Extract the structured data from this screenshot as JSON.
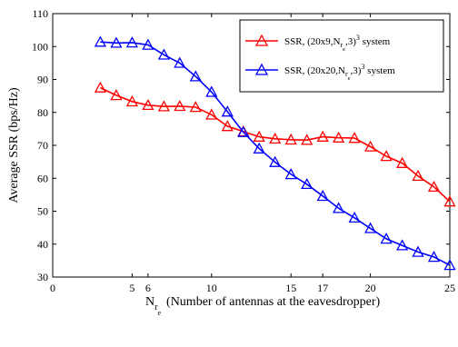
{
  "chart_data": {
    "type": "line",
    "xlim": [
      0,
      25
    ],
    "ylim": [
      30,
      110
    ],
    "xticks": [
      0,
      5,
      6,
      10,
      15,
      17,
      20,
      25
    ],
    "yticks": [
      30,
      40,
      50,
      60,
      70,
      80,
      90,
      100,
      110
    ],
    "xtick_labels": [
      "0",
      "5",
      "6",
      "10",
      "15",
      "17",
      "20",
      "25"
    ],
    "ytick_labels": [
      "30",
      "40",
      "50",
      "60",
      "70",
      "80",
      "90",
      "100",
      "110"
    ],
    "ylabel": "Average SSR (bps/Hz)",
    "xlabel": {
      "main": "N",
      "sub": "r",
      "subsub": "e",
      "rest": "(Number of antennas at the eavesdropper)"
    },
    "grid": false,
    "legend_position": "top-right",
    "series": [
      {
        "name_parts": {
          "pre": "SSR, (20x9,N",
          "sub": "r",
          "subsub": "e",
          "post": ",3)",
          "sup": "3",
          "tail": " system"
        },
        "color": "#ff0000",
        "marker": "triangle",
        "x": [
          3,
          4,
          5,
          6,
          7,
          8,
          9,
          10,
          11,
          12,
          13,
          14,
          15,
          16,
          17,
          18,
          19,
          20,
          21,
          22,
          23,
          24,
          25
        ],
        "y": [
          87.5,
          85.2,
          83.3,
          82.2,
          81.8,
          81.9,
          81.6,
          79.3,
          75.8,
          74.2,
          72.6,
          72.0,
          71.7,
          71.6,
          72.6,
          72.3,
          72.2,
          69.6,
          66.7,
          64.6,
          60.7,
          57.4,
          52.9
        ]
      },
      {
        "name_parts": {
          "pre": "SSR, (20x20,N",
          "sub": "r",
          "subsub": "e",
          "post": ",3)",
          "sup": "3",
          "tail": " system"
        },
        "color": "#0000ff",
        "marker": "triangle",
        "x": [
          3,
          4,
          5,
          6,
          7,
          8,
          9,
          10,
          11,
          12,
          13,
          14,
          15,
          16,
          17,
          18,
          19,
          20,
          21,
          22,
          23,
          24,
          25
        ],
        "y": [
          101.4,
          101.1,
          101.2,
          100.5,
          97.5,
          95.0,
          90.9,
          86.2,
          80.2,
          74.0,
          69.0,
          64.9,
          61.2,
          58.2,
          54.6,
          50.9,
          48.0,
          44.8,
          41.6,
          39.6,
          37.6,
          36.1,
          33.6
        ]
      }
    ]
  }
}
